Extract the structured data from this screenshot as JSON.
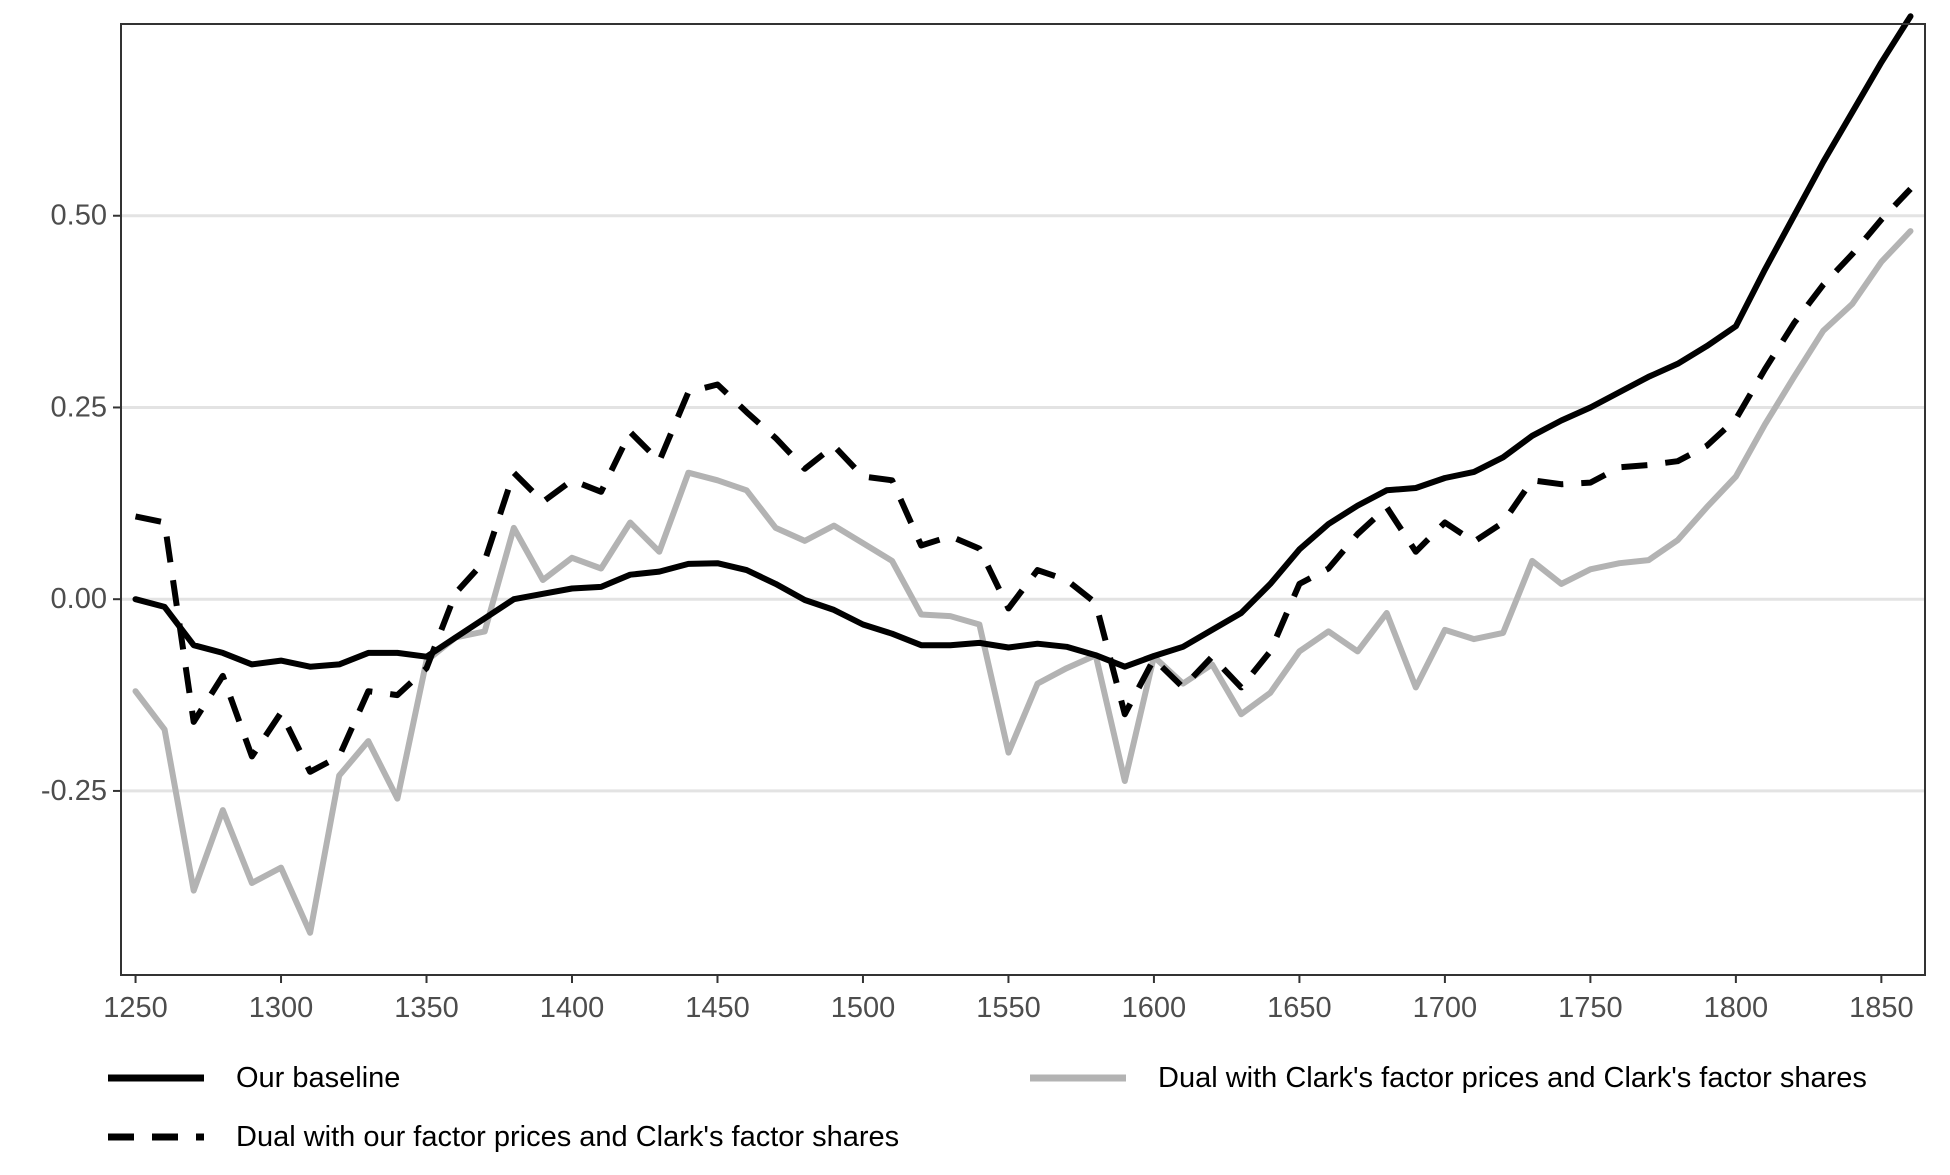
{
  "chart_data": {
    "type": "line",
    "title": "",
    "xlabel": "",
    "ylabel": "",
    "xlim": [
      1245,
      1865
    ],
    "ylim": [
      -0.49,
      0.75
    ],
    "grid": "horizontal",
    "legend_position": "bottom",
    "x_ticks": [
      1250,
      1300,
      1350,
      1400,
      1450,
      1500,
      1550,
      1600,
      1650,
      1700,
      1750,
      1800,
      1850
    ],
    "y_ticks": [
      -0.25,
      0.0,
      0.25,
      0.5
    ],
    "x_tick_labels": [
      "1250",
      "1300",
      "1350",
      "1400",
      "1450",
      "1500",
      "1550",
      "1600",
      "1650",
      "1700",
      "1750",
      "1800",
      "1850"
    ],
    "y_tick_labels": [
      "-0.25",
      "0.00",
      "0.25",
      "0.50"
    ],
    "x": [
      1250,
      1260,
      1270,
      1280,
      1290,
      1300,
      1310,
      1320,
      1330,
      1340,
      1350,
      1360,
      1370,
      1380,
      1390,
      1400,
      1410,
      1420,
      1430,
      1440,
      1450,
      1460,
      1470,
      1480,
      1490,
      1500,
      1510,
      1520,
      1530,
      1540,
      1550,
      1560,
      1570,
      1580,
      1590,
      1600,
      1610,
      1620,
      1630,
      1640,
      1650,
      1660,
      1670,
      1680,
      1690,
      1700,
      1710,
      1720,
      1730,
      1740,
      1750,
      1760,
      1770,
      1780,
      1790,
      1800,
      1810,
      1820,
      1830,
      1840,
      1850,
      1860
    ],
    "series": [
      {
        "name": "Our baseline",
        "color": "#000000",
        "dash": "solid",
        "values": [
          0.0,
          -0.01,
          -0.06,
          -0.07,
          -0.085,
          -0.08,
          -0.088,
          -0.085,
          -0.07,
          -0.07,
          -0.075,
          -0.05,
          -0.025,
          0.0,
          0.007,
          0.014,
          0.016,
          0.032,
          0.036,
          0.046,
          0.047,
          0.038,
          0.02,
          -0.001,
          -0.014,
          -0.033,
          -0.045,
          -0.06,
          -0.06,
          -0.057,
          -0.063,
          -0.058,
          -0.062,
          -0.073,
          -0.088,
          -0.074,
          -0.062,
          -0.04,
          -0.018,
          0.02,
          0.065,
          0.098,
          0.122,
          0.142,
          0.145,
          0.158,
          0.166,
          0.185,
          0.213,
          0.233,
          0.25,
          0.27,
          0.29,
          0.307,
          0.33,
          0.356,
          0.43,
          0.5,
          0.57,
          0.635,
          0.7,
          0.76
        ]
      },
      {
        "name": "Dual with Clark's factor prices and Clark's factor shares",
        "color": "#b3b3b3",
        "dash": "solid",
        "values": [
          -0.12,
          -0.17,
          -0.38,
          -0.275,
          -0.37,
          -0.35,
          -0.435,
          -0.23,
          -0.185,
          -0.26,
          -0.08,
          -0.05,
          -0.042,
          0.093,
          0.025,
          0.054,
          0.04,
          0.1,
          0.062,
          0.165,
          0.155,
          0.142,
          0.093,
          0.076,
          0.096,
          0.073,
          0.05,
          -0.02,
          -0.022,
          -0.033,
          -0.2,
          -0.11,
          -0.09,
          -0.073,
          -0.237,
          -0.075,
          -0.11,
          -0.085,
          -0.15,
          -0.122,
          -0.068,
          -0.042,
          -0.068,
          -0.018,
          -0.115,
          -0.04,
          -0.052,
          -0.044,
          0.05,
          0.02,
          0.039,
          0.047,
          0.051,
          0.077,
          0.12,
          0.16,
          0.228,
          0.29,
          0.35,
          0.385,
          0.44,
          0.48
        ]
      },
      {
        "name": "Dual with our factor prices and Clark's factor shares",
        "color": "#000000",
        "dash": "dashed",
        "values": [
          0.108,
          0.1,
          -0.16,
          -0.1,
          -0.205,
          -0.148,
          -0.225,
          -0.205,
          -0.12,
          -0.125,
          -0.09,
          0.008,
          0.05,
          0.165,
          0.127,
          0.155,
          0.14,
          0.218,
          0.18,
          0.27,
          0.28,
          0.244,
          0.21,
          0.17,
          0.2,
          0.16,
          0.155,
          0.07,
          0.082,
          0.066,
          -0.012,
          0.038,
          0.025,
          -0.005,
          -0.15,
          -0.078,
          -0.115,
          -0.075,
          -0.115,
          -0.068,
          0.02,
          0.04,
          0.085,
          0.12,
          0.062,
          0.1,
          0.075,
          0.1,
          0.155,
          0.15,
          0.152,
          0.172,
          0.175,
          0.18,
          0.2,
          0.235,
          0.3,
          0.36,
          0.41,
          0.45,
          0.495,
          0.535
        ]
      }
    ]
  }
}
